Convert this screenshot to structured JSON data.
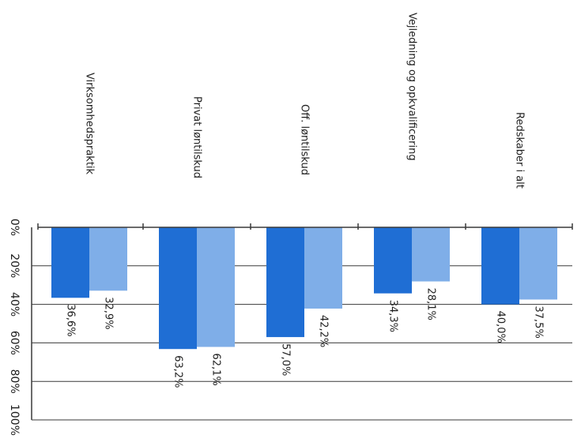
{
  "chart_data": {
    "type": "bar",
    "orientation": "rotated",
    "categories": [
      "Virksomhedspraktik",
      "Privat løntilskud",
      "Off. løntilskud",
      "Vejledning og opkvalificering",
      "Redskaber i alt"
    ],
    "series": [
      {
        "values": [
          36.6,
          63.2,
          57.0,
          34.3,
          40.0
        ],
        "labels": [
          "36,6%",
          "63,2%",
          "57,0%",
          "34,3%",
          "40,0%"
        ],
        "color": "#1f6ed4"
      },
      {
        "values": [
          32.9,
          62.1,
          42.2,
          28.1,
          37.5
        ],
        "labels": [
          "32,9%",
          "62,1%",
          "42,2%",
          "28,1%",
          "37,5%"
        ],
        "color": "#7faee8"
      }
    ],
    "value_axis": {
      "ticks": [
        0,
        20,
        40,
        60,
        80,
        100
      ],
      "tick_labels": [
        "0%",
        "20%",
        "40%",
        "60%",
        "80%",
        "100%"
      ],
      "range": [
        0,
        100
      ]
    },
    "grid": true,
    "legend": "none"
  }
}
